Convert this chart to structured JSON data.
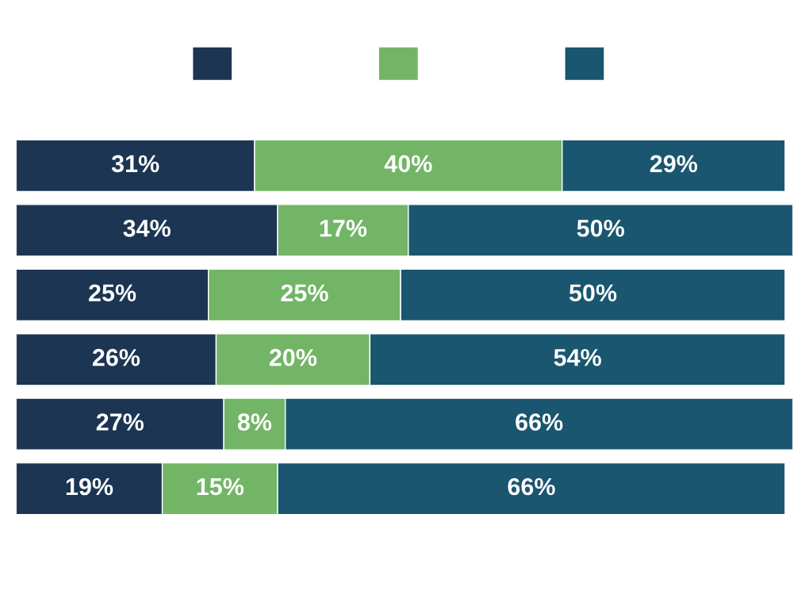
{
  "chart_data": {
    "type": "bar",
    "orientation": "horizontal",
    "stacked": true,
    "categories": [
      null,
      null,
      null,
      null,
      null,
      null
    ],
    "series": [
      {
        "color": "#1c3553",
        "values": [
          31,
          34,
          25,
          26,
          27,
          19
        ],
        "value_labels": [
          "31%",
          "34%",
          "25%",
          "26%",
          "27%",
          "19%"
        ]
      },
      {
        "color": "#72b566",
        "values": [
          40,
          17,
          25,
          20,
          8,
          15
        ],
        "value_labels": [
          "40%",
          "17%",
          "25%",
          "20%",
          "8%",
          "15%"
        ]
      },
      {
        "color": "#1a566f",
        "values": [
          29,
          50,
          50,
          54,
          66,
          66
        ],
        "value_labels": [
          "29%",
          "50%",
          "50%",
          "54%",
          "66%",
          "66%"
        ]
      }
    ],
    "grid": false
  }
}
